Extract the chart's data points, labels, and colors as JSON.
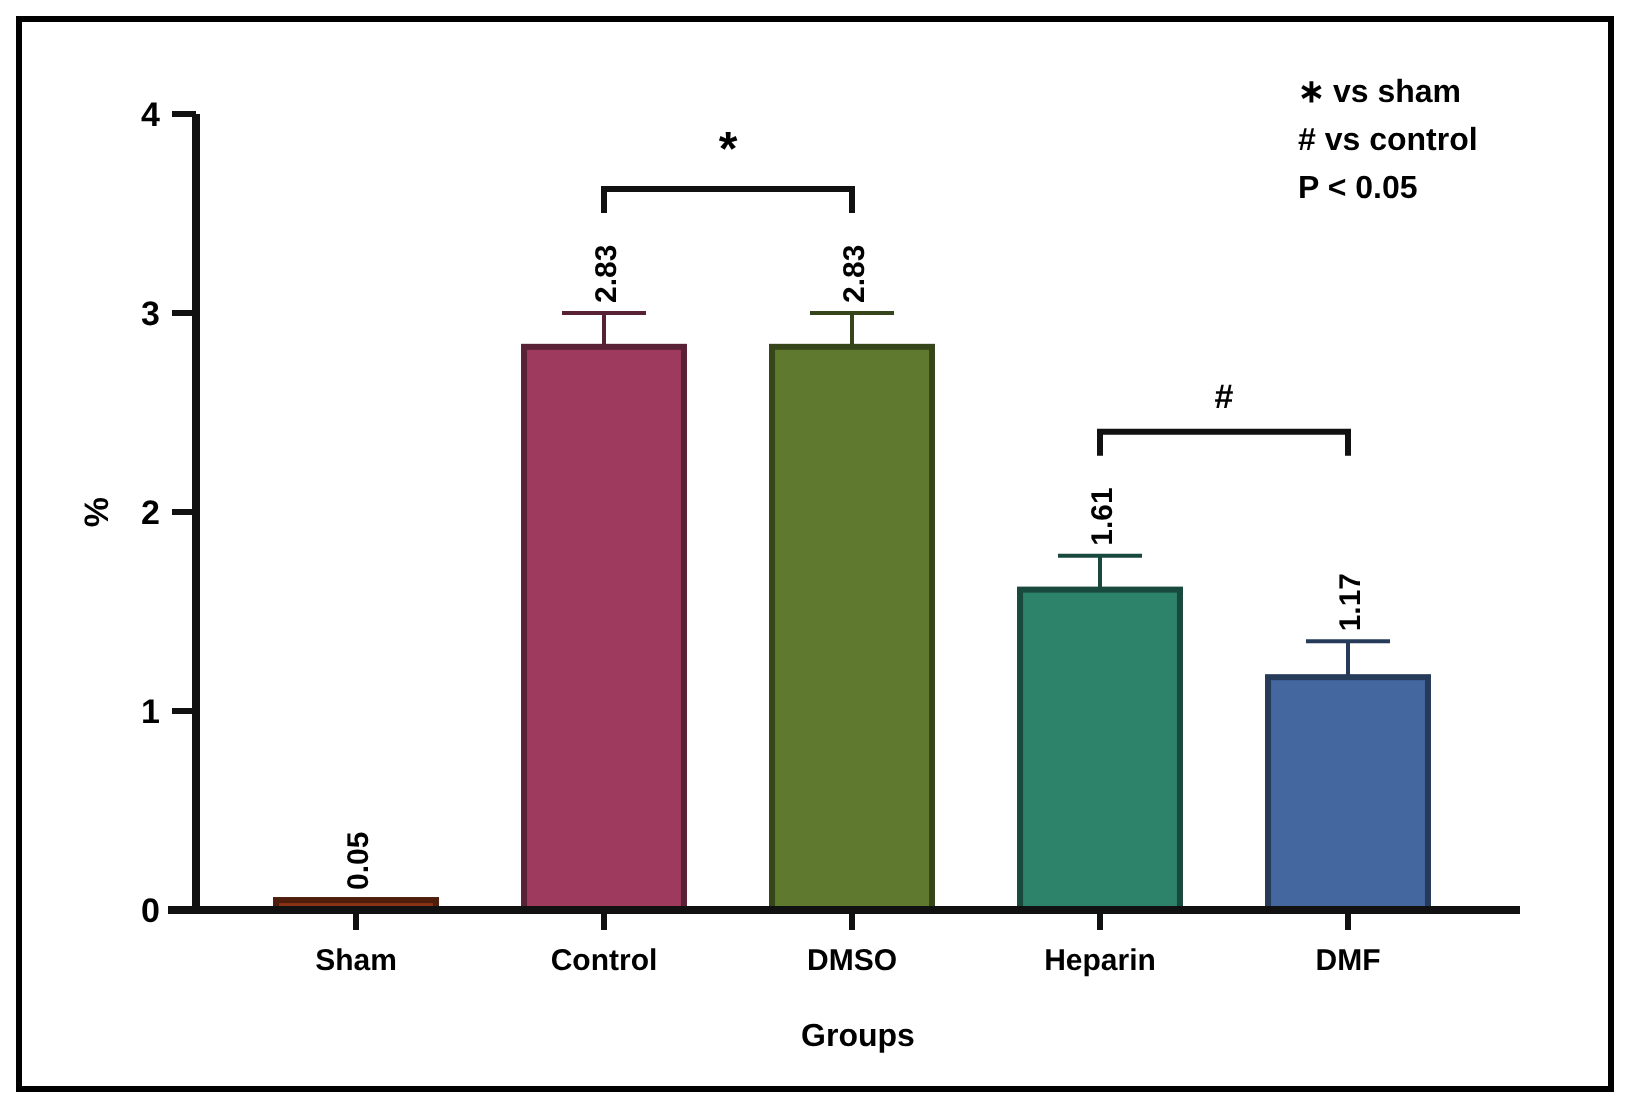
{
  "chart_data": {
    "type": "bar",
    "xlabel": "Groups",
    "ylabel": "%",
    "categories": [
      "Sham",
      "Control",
      "DMSO",
      "Heparin",
      "DMF"
    ],
    "values": [
      0.05,
      2.83,
      2.83,
      1.61,
      1.17
    ],
    "errors": [
      null,
      [
        2.83,
        3.0
      ],
      [
        2.83,
        3.0
      ],
      [
        1.61,
        1.78
      ],
      [
        1.17,
        1.35
      ]
    ],
    "colors": [
      "#8a3414",
      "#9e3a5e",
      "#5f7a2e",
      "#2d826a",
      "#43679e"
    ],
    "ylim": [
      0,
      4
    ],
    "yticks": [
      0,
      1,
      2,
      3,
      4
    ],
    "grid": false,
    "data_labels": true,
    "annotations": [
      "*",
      "#",
      "∗ vs sham",
      "# vs control",
      "P < 0.05"
    ]
  }
}
